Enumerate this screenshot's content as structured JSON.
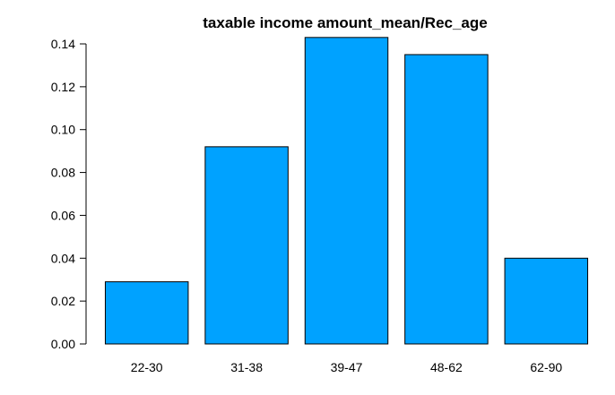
{
  "chart_data": {
    "type": "bar",
    "title": "taxable income amount_mean/Rec_age",
    "xlabel": "",
    "ylabel": "",
    "categories": [
      "22-30",
      "31-38",
      "39-47",
      "48-62",
      "62-90"
    ],
    "values": [
      0.029,
      0.092,
      0.143,
      0.135,
      0.04
    ],
    "ylim": [
      0,
      0.14
    ],
    "y_ticks": [
      "0.00",
      "0.02",
      "0.04",
      "0.06",
      "0.08",
      "0.10",
      "0.12",
      "0.14"
    ],
    "grid": false,
    "legend": "none",
    "bar_color": "#00a2ff"
  }
}
